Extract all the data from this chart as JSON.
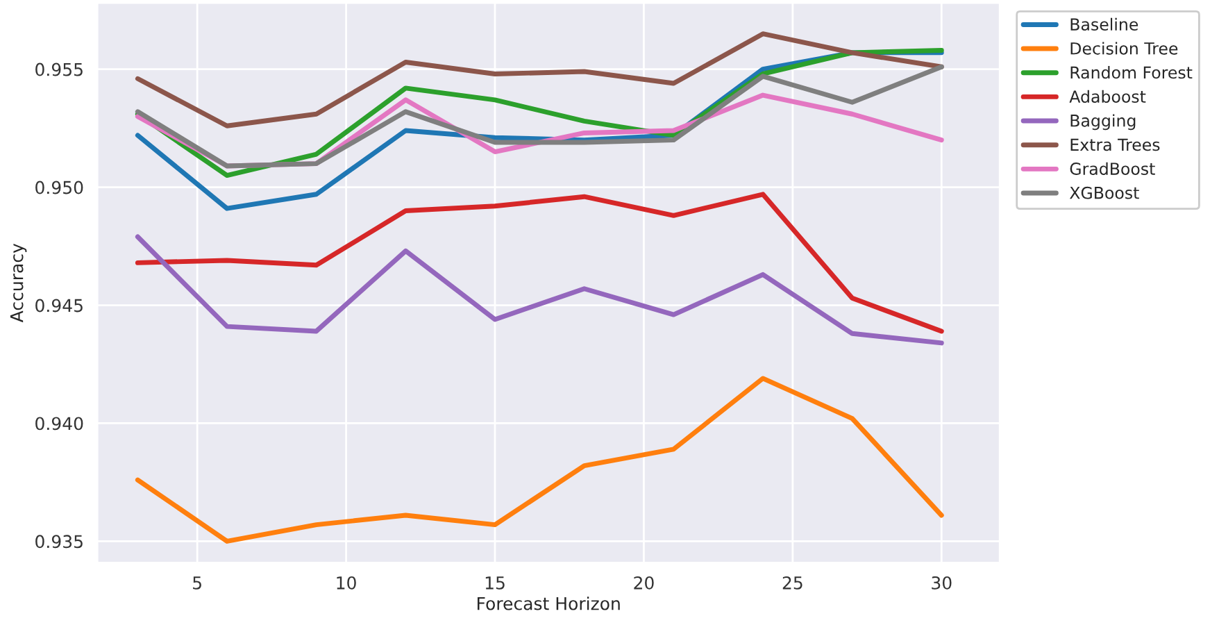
{
  "chart_data": {
    "type": "line",
    "xlabel": "Forecast Horizon",
    "ylabel": "Accuracy",
    "x": [
      3,
      6,
      9,
      12,
      15,
      18,
      21,
      24,
      27,
      30
    ],
    "xlim": [
      1.65,
      31.95
    ],
    "xticks": [
      5,
      10,
      15,
      20,
      25,
      30
    ],
    "ylim": [
      0.9341,
      0.9578
    ],
    "yticks": [
      {
        "value": 0.935,
        "label": "0.935"
      },
      {
        "value": 0.94,
        "label": "0.940"
      },
      {
        "value": 0.945,
        "label": "0.945"
      },
      {
        "value": 0.95,
        "label": "0.950"
      },
      {
        "value": 0.955,
        "label": "0.955"
      }
    ],
    "grid": true,
    "legend": "top right",
    "line_style": "solid",
    "marker": "none",
    "series": [
      {
        "name": "Baseline",
        "color": "#1f77b4",
        "values": [
          0.9522,
          0.9491,
          0.9497,
          0.9524,
          0.9521,
          0.952,
          0.9522,
          0.955,
          0.9557,
          0.9557
        ]
      },
      {
        "name": "Decision Tree",
        "color": "#ff7f0e",
        "values": [
          0.9376,
          0.935,
          0.9357,
          0.9361,
          0.9357,
          0.9382,
          0.9389,
          0.9419,
          0.9402,
          0.9361
        ]
      },
      {
        "name": "Random Forest",
        "color": "#2ca02c",
        "values": [
          0.9531,
          0.9505,
          0.9514,
          0.9542,
          0.9537,
          0.9528,
          0.9522,
          0.9548,
          0.9557,
          0.9558
        ]
      },
      {
        "name": "Adaboost",
        "color": "#d62728",
        "values": [
          0.9468,
          0.9469,
          0.9467,
          0.949,
          0.9492,
          0.9496,
          0.9488,
          0.9497,
          0.9453,
          0.9439
        ]
      },
      {
        "name": "Bagging",
        "color": "#9467bd",
        "values": [
          0.9479,
          0.9441,
          0.9439,
          0.9473,
          0.9444,
          0.9457,
          0.9446,
          0.9463,
          0.9438,
          0.9434
        ]
      },
      {
        "name": "Extra Trees",
        "color": "#8c564b",
        "values": [
          0.9546,
          0.9526,
          0.9531,
          0.9553,
          0.9548,
          0.9549,
          0.9544,
          0.9565,
          0.9557,
          0.9551
        ]
      },
      {
        "name": "GradBoost",
        "color": "#e377c2",
        "values": [
          0.953,
          0.9509,
          0.951,
          0.9537,
          0.9515,
          0.9523,
          0.9524,
          0.9539,
          0.9531,
          0.952
        ]
      },
      {
        "name": "XGBoost",
        "color": "#7f7f7f",
        "values": [
          0.9532,
          0.9509,
          0.951,
          0.9532,
          0.9519,
          0.9519,
          0.952,
          0.9547,
          0.9536,
          0.9551
        ]
      }
    ]
  }
}
